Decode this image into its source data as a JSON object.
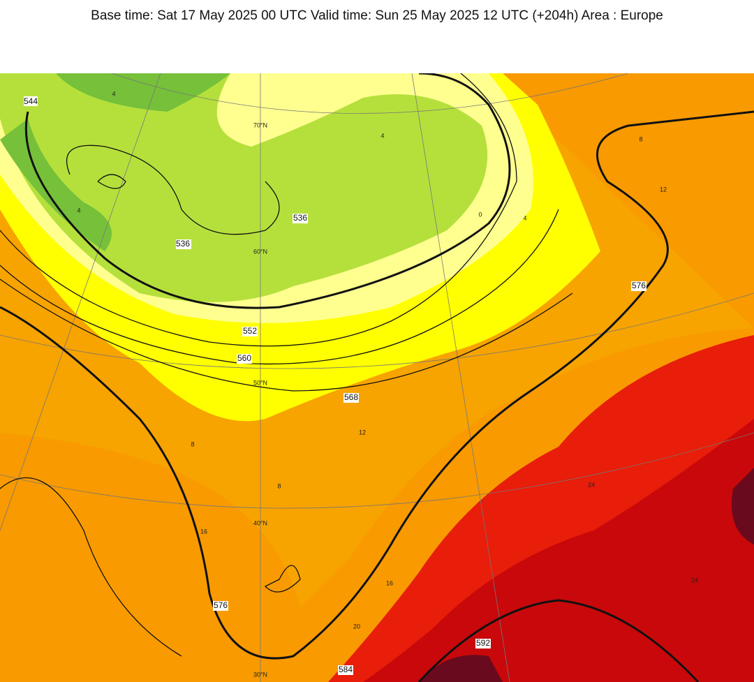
{
  "header": {
    "title": "Base time: Sat 17 May 2025 00 UTC Valid time: Sun 25 May 2025 12 UTC (+204h) Area : Europe"
  },
  "map": {
    "latitude_labels": [
      "70°N",
      "60°N",
      "50°N",
      "40°N",
      "30°N"
    ],
    "contour_labels": [
      "544",
      "536",
      "536",
      "552",
      "560",
      "568",
      "576",
      "576",
      "584",
      "592"
    ],
    "temperature_labels": [
      "4",
      "4",
      "4",
      "0",
      "4",
      "8",
      "12",
      "12",
      "8",
      "8",
      "16",
      "16",
      "20",
      "24",
      "24"
    ]
  }
}
